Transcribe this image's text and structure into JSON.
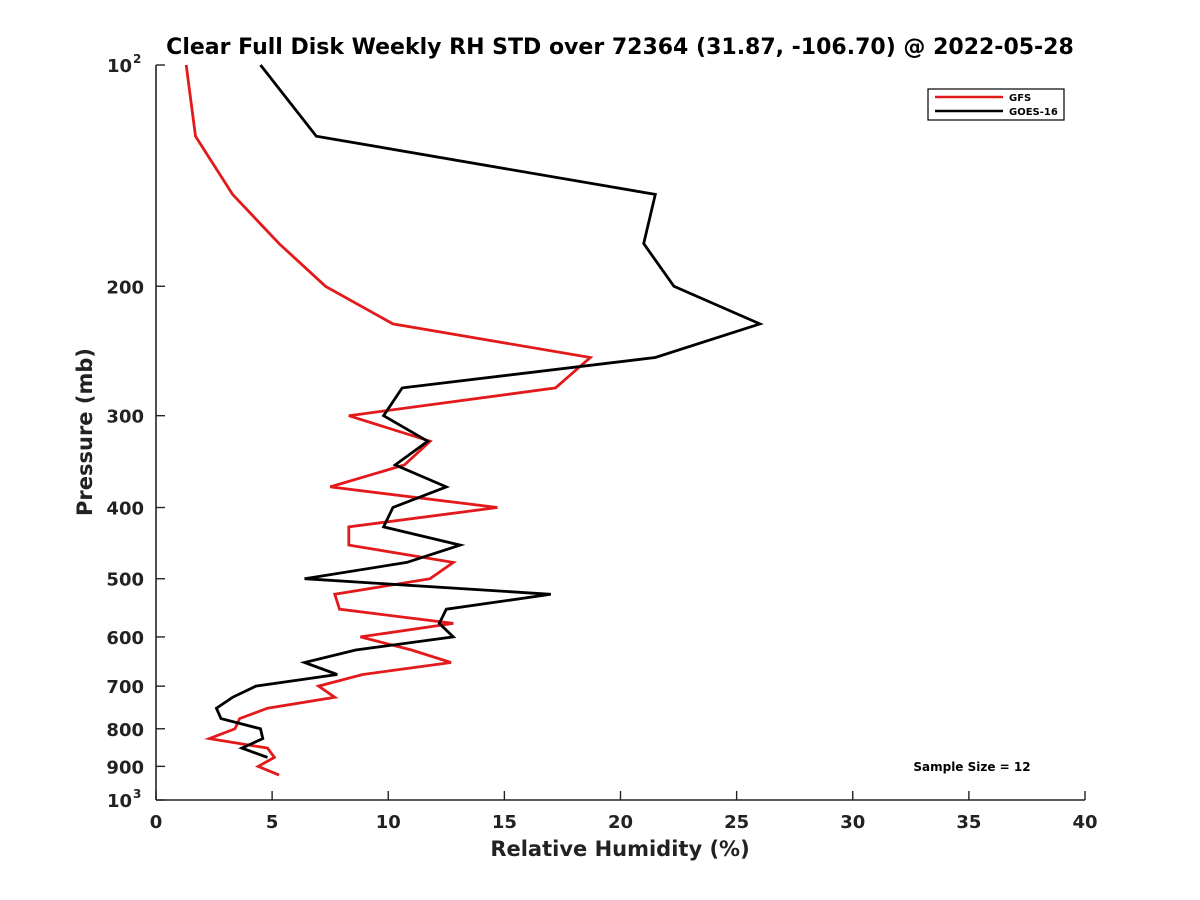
{
  "chart_data": {
    "type": "line",
    "title": "Clear Full Disk Weekly RH STD over 72364 (31.87, -106.70) @ 2022-05-28",
    "xlabel": "Relative Humidity (%)",
    "ylabel": "Pressure (mb)",
    "xlim": [
      0,
      40
    ],
    "ylim": [
      100,
      1000
    ],
    "y_scale": "log",
    "y_reversed": true,
    "grid": false,
    "legend_position": "top-right",
    "x_ticks": [
      "0",
      "5",
      "10",
      "15",
      "20",
      "25",
      "30",
      "35",
      "40"
    ],
    "y_ticks": [
      {
        "value": 100,
        "base": "10",
        "exp": "2"
      },
      {
        "value": 200,
        "label": "200"
      },
      {
        "value": 300,
        "label": "300"
      },
      {
        "value": 400,
        "label": "400"
      },
      {
        "value": 500,
        "label": "500"
      },
      {
        "value": 600,
        "label": "600"
      },
      {
        "value": 700,
        "label": "700"
      },
      {
        "value": 800,
        "label": "800"
      },
      {
        "value": 900,
        "label": "900"
      },
      {
        "value": 1000,
        "base": "10",
        "exp": "3"
      }
    ],
    "series": [
      {
        "name": "GFS",
        "color": "#e31a1c",
        "points": [
          [
            1.3,
            100
          ],
          [
            1.7,
            125
          ],
          [
            3.3,
            150
          ],
          [
            5.3,
            175
          ],
          [
            7.3,
            200
          ],
          [
            10.2,
            225
          ],
          [
            18.7,
            250
          ],
          [
            17.2,
            275
          ],
          [
            8.3,
            300
          ],
          [
            11.8,
            325
          ],
          [
            10.7,
            350
          ],
          [
            7.5,
            375
          ],
          [
            14.7,
            400
          ],
          [
            8.3,
            425
          ],
          [
            8.3,
            450
          ],
          [
            12.8,
            475
          ],
          [
            11.8,
            500
          ],
          [
            7.7,
            525
          ],
          [
            7.9,
            550
          ],
          [
            12.8,
            575
          ],
          [
            8.8,
            600
          ],
          [
            11.0,
            625
          ],
          [
            12.7,
            650
          ],
          [
            8.9,
            675
          ],
          [
            7.0,
            700
          ],
          [
            7.7,
            725
          ],
          [
            4.8,
            750
          ],
          [
            3.6,
            775
          ],
          [
            3.4,
            800
          ],
          [
            2.3,
            825
          ],
          [
            4.8,
            850
          ],
          [
            5.1,
            875
          ],
          [
            4.4,
            900
          ],
          [
            5.3,
            925
          ]
        ]
      },
      {
        "name": "GOES-16",
        "color": "#000000",
        "points": [
          [
            4.5,
            100
          ],
          [
            6.9,
            125
          ],
          [
            21.5,
            150
          ],
          [
            21.0,
            175
          ],
          [
            22.3,
            200
          ],
          [
            26.0,
            225
          ],
          [
            21.5,
            250
          ],
          [
            10.6,
            275
          ],
          [
            9.8,
            300
          ],
          [
            11.7,
            325
          ],
          [
            10.3,
            350
          ],
          [
            12.5,
            375
          ],
          [
            10.2,
            400
          ],
          [
            9.8,
            425
          ],
          [
            13.1,
            450
          ],
          [
            10.8,
            475
          ],
          [
            6.4,
            500
          ],
          [
            17.0,
            525
          ],
          [
            12.5,
            550
          ],
          [
            12.2,
            575
          ],
          [
            12.8,
            600
          ],
          [
            8.6,
            625
          ],
          [
            6.4,
            650
          ],
          [
            7.8,
            675
          ],
          [
            4.3,
            700
          ],
          [
            3.3,
            725
          ],
          [
            2.6,
            750
          ],
          [
            2.8,
            775
          ],
          [
            4.5,
            800
          ],
          [
            4.6,
            825
          ],
          [
            3.7,
            850
          ],
          [
            4.8,
            875
          ]
        ]
      }
    ],
    "annotation": "Sample Size = 12"
  }
}
